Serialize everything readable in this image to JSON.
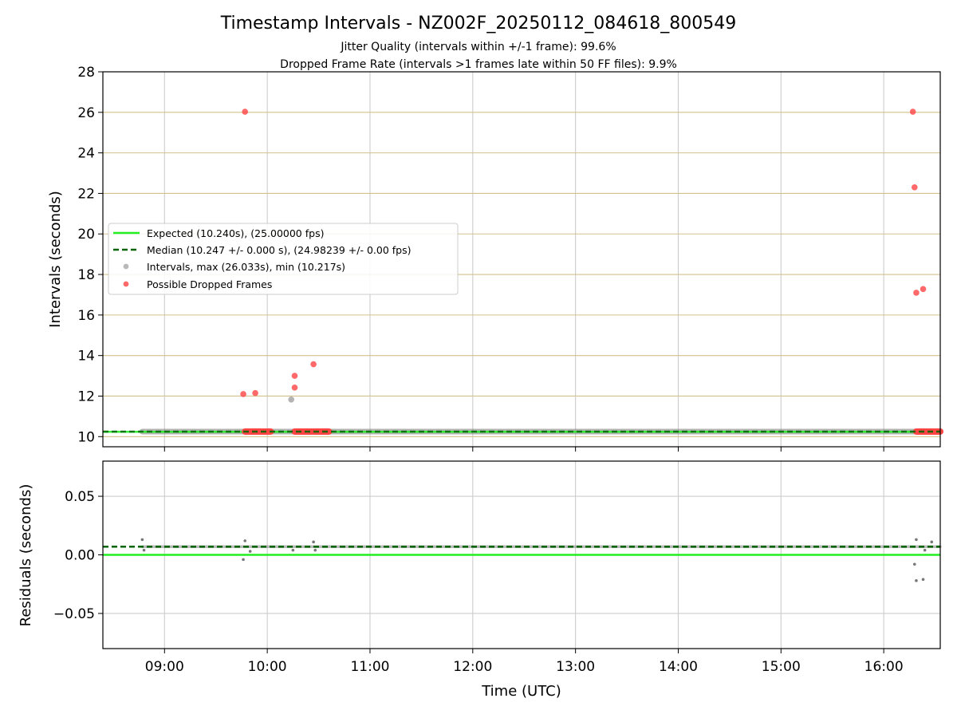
{
  "figure": {
    "title": "Timestamp Intervals - NZ002F_20250112_084618_800549",
    "subtitle_1": "Jitter Quality (intervals within +/-1 frame): 99.6%",
    "subtitle_2": "Dropped Frame Rate (intervals >1 frames late within 50 FF files): 9.9%"
  },
  "colors": {
    "expected": "#22ee22",
    "median": "#006400",
    "intervals": "#808080",
    "dropped": "#ff4444",
    "grid_top": "#d4c08a",
    "grid": "#cccccc"
  },
  "chart_data": [
    {
      "type": "scatter",
      "panel": "intervals",
      "ylabel": "Intervals (seconds)",
      "xlim": [
        "08:24",
        "16:33"
      ],
      "ylim": [
        9.5,
        28
      ],
      "yticks": [
        10,
        12,
        14,
        16,
        18,
        20,
        22,
        24,
        26,
        28
      ],
      "ytick_labels": [
        "10",
        "12",
        "14",
        "16",
        "18",
        "20",
        "22",
        "24",
        "26",
        "28"
      ],
      "grid": true,
      "legend_position": "center-left",
      "legend": [
        "Expected (10.240s), (25.00000 fps)",
        "Median (10.247 +/- 0.000 s), (24.98239 +/- 0.00 fps)",
        "Intervals, max (26.033s), min (10.217s)",
        "Possible Dropped Frames"
      ],
      "series": [
        {
          "name": "Expected (10.240s), (25.00000 fps)",
          "kind": "hline",
          "y": 10.24
        },
        {
          "name": "Median (10.247 +/- 0.000 s), (24.98239 +/- 0.00 fps)",
          "kind": "hline-dashed",
          "y": 10.247
        },
        {
          "name": "Intervals, max (26.033s), min (10.217s)",
          "kind": "scatter",
          "band": {
            "x_start": "08:47",
            "x_end": "16:33",
            "y": 10.247
          },
          "points": [
            {
              "x": "10:14",
              "y": 11.83
            }
          ]
        },
        {
          "name": "Possible Dropped Frames",
          "kind": "scatter",
          "bands": [
            {
              "x_start": "09:47",
              "x_end": "10:02",
              "y": 10.25
            },
            {
              "x_start": "10:16",
              "x_end": "10:26",
              "y": 10.25
            },
            {
              "x_start": "10:27",
              "x_end": "10:36",
              "y": 10.25
            },
            {
              "x_start": "16:19",
              "x_end": "16:33",
              "y": 10.25
            }
          ],
          "points": [
            {
              "x": "09:46",
              "y": 12.1
            },
            {
              "x": "09:47",
              "y": 26.03
            },
            {
              "x": "09:53",
              "y": 12.15
            },
            {
              "x": "10:16",
              "y": 13.0
            },
            {
              "x": "10:16",
              "y": 12.42
            },
            {
              "x": "10:27",
              "y": 13.57
            },
            {
              "x": "16:17",
              "y": 26.03
            },
            {
              "x": "16:18",
              "y": 22.3
            },
            {
              "x": "16:19",
              "y": 17.1
            },
            {
              "x": "16:23",
              "y": 17.28
            }
          ]
        }
      ]
    },
    {
      "type": "scatter",
      "panel": "residuals",
      "xlabel": "Time (UTC)",
      "ylabel": "Residuals (seconds)",
      "xlim": [
        "08:24",
        "16:33"
      ],
      "xticks": [
        "09:00",
        "10:00",
        "11:00",
        "12:00",
        "13:00",
        "14:00",
        "15:00",
        "16:00"
      ],
      "xtick_labels": [
        "09:00",
        "10:00",
        "11:00",
        "12:00",
        "13:00",
        "14:00",
        "15:00",
        "16:00"
      ],
      "ylim": [
        -0.08,
        0.08
      ],
      "yticks": [
        0.05,
        0.0,
        -0.05
      ],
      "ytick_labels": [
        "0.05",
        "0.00",
        "−0.05"
      ],
      "grid": true,
      "series": [
        {
          "kind": "hline",
          "y": 0.0
        },
        {
          "kind": "hline-dashed",
          "y": 0.007
        },
        {
          "kind": "scatter",
          "band": {
            "x_start": "08:47",
            "x_end": "16:33",
            "y": 0.007
          },
          "points": [
            {
              "x": "08:47",
              "y": 0.013
            },
            {
              "x": "08:48",
              "y": 0.004
            },
            {
              "x": "09:46",
              "y": -0.004
            },
            {
              "x": "09:47",
              "y": 0.012
            },
            {
              "x": "09:50",
              "y": 0.003
            },
            {
              "x": "10:15",
              "y": 0.004
            },
            {
              "x": "10:27",
              "y": 0.011
            },
            {
              "x": "10:28",
              "y": 0.004
            },
            {
              "x": "16:18",
              "y": -0.008
            },
            {
              "x": "16:19",
              "y": -0.022
            },
            {
              "x": "16:19",
              "y": 0.013
            },
            {
              "x": "16:23",
              "y": -0.021
            },
            {
              "x": "16:24",
              "y": 0.004
            },
            {
              "x": "16:28",
              "y": 0.011
            }
          ]
        }
      ]
    }
  ]
}
